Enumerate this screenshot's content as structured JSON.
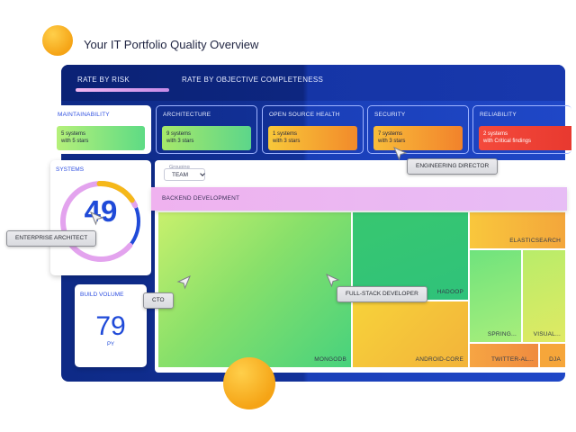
{
  "page": {
    "title": "Your IT Portfolio Quality Overview"
  },
  "tabs": [
    {
      "label": "RATE BY RISK",
      "active": true
    },
    {
      "label": "RATE BY OBJECTIVE COMPLETENESS",
      "active": false
    }
  ],
  "metrics": [
    {
      "label": "MAINTAINABILITY",
      "line1": "5 systems",
      "line2": "with 5 stars",
      "status_color": "#5edb84"
    },
    {
      "label": "ARCHITECTURE",
      "line1": "9 systems",
      "line2": "with 3 stars",
      "status_color": "#5cd68a"
    },
    {
      "label": "OPEN SOURCE HEALTH",
      "line1": "1 systems",
      "line2": "with 3 stars",
      "status_color": "#f28a2a"
    },
    {
      "label": "SECURITY",
      "line1": "7 systems",
      "line2": "with 3 stars",
      "status_color": "#f2822b"
    },
    {
      "label": "RELIABILITY",
      "line1": "2 systems",
      "line2": "with Critical findings",
      "status_color": "#e8392f"
    }
  ],
  "systems": {
    "label": "SYSTEMS",
    "value": "49",
    "gauge_fraction": 0.82
  },
  "build_volume": {
    "label": "BUILD VOLUME",
    "value": "79",
    "unit": "PY"
  },
  "grouping": {
    "caption": "Grouping",
    "selected": "TEAM"
  },
  "group_bar": {
    "label": "BACKEND DEVELOPMENT"
  },
  "treemap": [
    {
      "label": "MONGODB"
    },
    {
      "label": "HADOOP"
    },
    {
      "label": "ANDROID-CORE"
    },
    {
      "label": "ELASTICSEARCH"
    },
    {
      "label": "SPRING..."
    },
    {
      "label": "VISUAL..."
    },
    {
      "label": "TWITTER-AL..."
    },
    {
      "label": "DJA"
    }
  ],
  "personas": {
    "engineering_director": "ENGINEERING DIRECTOR",
    "enterprise_architect": "ENTERPRISE ARCHITECT",
    "cto": "CTO",
    "fullstack_developer": "FULL-STACK DEVELOPER"
  },
  "colors": {
    "accent": "#1f4ad8",
    "board": "#123199",
    "gauge_pink": "#e3a3ee",
    "gauge_yellow": "#f5b819"
  }
}
